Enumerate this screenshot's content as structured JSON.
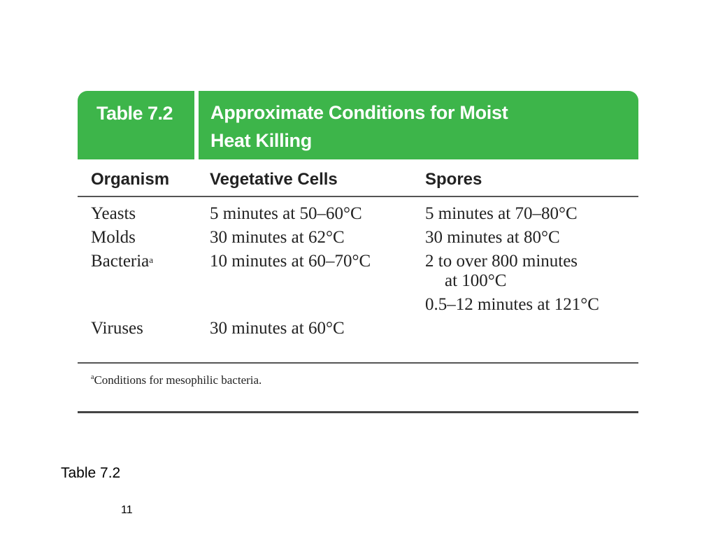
{
  "table": {
    "number": "Table 7.2",
    "title_line1": "Approximate Conditions for Moist",
    "title_line2": "Heat Killing",
    "columns": [
      "Organism",
      "Vegetative Cells",
      "Spores"
    ],
    "rows": [
      {
        "organism": "Yeasts",
        "vegetative": "5 minutes at 50–60°C",
        "spores": "5 minutes at 70–80°C"
      },
      {
        "organism": "Molds",
        "vegetative": "30 minutes at 62°C",
        "spores": "30 minutes at 80°C"
      },
      {
        "organism": "Bacteria",
        "organism_sup": "a",
        "vegetative": "10 minutes at 60–70°C",
        "spores_line1": "2 to over 800 minutes",
        "spores_line2": "at 100°C",
        "spores_extra": "0.5–12 minutes at 121°C"
      },
      {
        "organism": "Viruses",
        "vegetative": "30 minutes at 60°C",
        "spores": ""
      }
    ],
    "footnote_mark": "a",
    "footnote": "Conditions for mesophilic bacteria.",
    "header_color": "#3db54a"
  },
  "caption": "Table 7.2",
  "page_number": "11"
}
